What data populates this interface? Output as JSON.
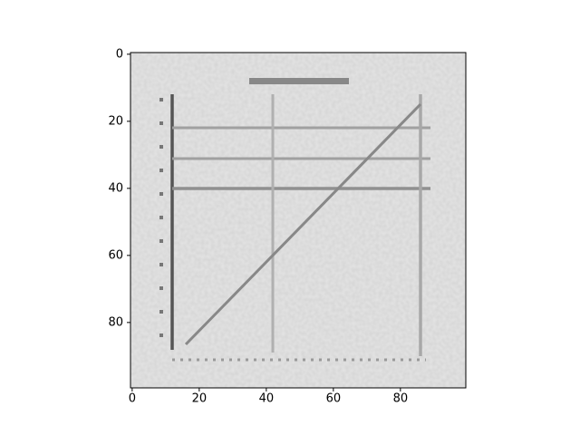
{
  "chart_data": {
    "type": "image",
    "xlim": [
      -0.5,
      99.5
    ],
    "ylim": [
      99.5,
      -0.5
    ],
    "xticks": [
      0,
      20,
      40,
      60,
      80
    ],
    "yticks": [
      0,
      20,
      40,
      60,
      80
    ]
  }
}
